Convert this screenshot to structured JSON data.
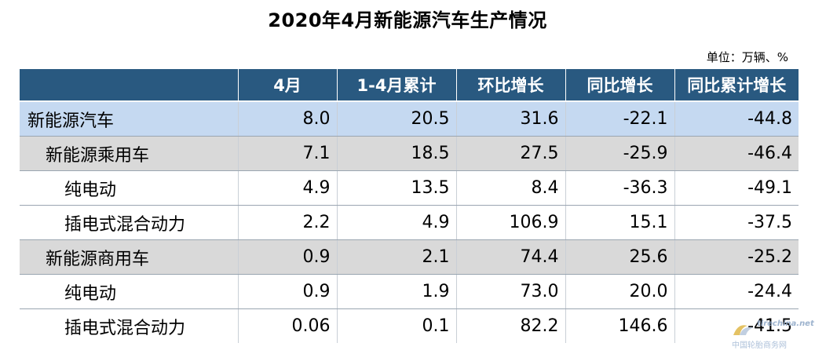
{
  "title": "2020年4月新能源汽车生产情况",
  "unit": "单位：万辆、%",
  "table": {
    "headers": [
      "",
      "4月",
      "1-4月累计",
      "环比增长",
      "同比增长",
      "同比累计增长"
    ],
    "rows": [
      {
        "label": "新能源汽车",
        "values": [
          "8.0",
          "20.5",
          "31.6",
          "-22.1",
          "-44.8"
        ]
      },
      {
        "label": "新能源乘用车",
        "values": [
          "7.1",
          "18.5",
          "27.5",
          "-25.9",
          "-46.4"
        ]
      },
      {
        "label": "纯电动",
        "values": [
          "4.9",
          "13.5",
          "8.4",
          "-36.3",
          "-49.1"
        ]
      },
      {
        "label": "插电式混合动力",
        "values": [
          "2.2",
          "4.9",
          "106.9",
          "15.1",
          "-37.5"
        ]
      },
      {
        "label": "新能源商用车",
        "values": [
          "0.9",
          "2.1",
          "74.4",
          "25.6",
          "-25.2"
        ]
      },
      {
        "label": "纯电动",
        "values": [
          "0.9",
          "1.9",
          "73.0",
          "20.0",
          "-24.4"
        ]
      },
      {
        "label": "插电式混合动力",
        "values": [
          "0.06",
          "0.1",
          "82.2",
          "146.6",
          "-41.5"
        ]
      }
    ]
  },
  "watermark": {
    "site": "tirechina.net",
    "text": "中国轮胎商务网"
  }
}
